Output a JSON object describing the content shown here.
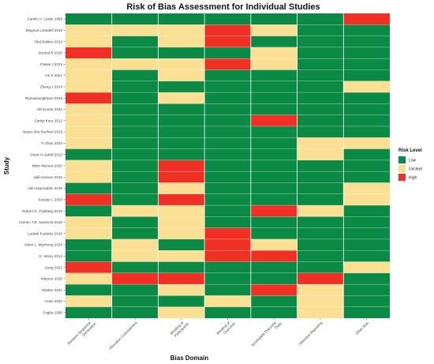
{
  "chart_data": {
    "type": "heatmap",
    "title": "Risk of Bias Assessment for Individual Studies",
    "xlabel": "Bias Domain",
    "ylabel": "Study",
    "x_categories": [
      "Random Sequence Generation",
      "Allocation Concealment",
      "Blinding of Participants",
      "Blinding of Outcome",
      "Incomplete Outcome Data",
      "Selective Reporting",
      "Other Bias"
    ],
    "y_categories": [
      "Camilo A. Leslie 1968",
      "Magnus Lönsdell 2010",
      "Olaf Bakker 2024",
      "Strohal R 2025",
      "Pasek J 2023",
      "He S 2021",
      "Zhang J 2014",
      "Rianantiungkham 2025",
      "Alit Kumar 2020",
      "Sartipi Kaur 2012",
      "Neser Abu Rached 2023",
      "Yi Zhao 2023",
      "Omar Al-Jaloill 2022",
      "Mitre Macura 2020",
      "Jalil Azimian 2015",
      "Nik Hisamuddin 2019",
      "Kessler L 2003",
      "Robert G. Frykberg 2020",
      "Katrien T.B. Santema 2018",
      "Ludwik Fedorko 2016",
      "Aldon L. Mynhong 2024",
      "G. Ielsiry 2012",
      "Song 2021",
      "Mirpour 2020",
      "Wadee 2021",
      "Amini 2020",
      "Fagha 1996"
    ],
    "levels": [
      "Low",
      "Unclear",
      "High"
    ],
    "grid": [
      [
        "Low",
        "Low",
        "Low",
        "Low",
        "Low",
        "Low",
        "High"
      ],
      [
        "Unclear",
        "Unclear",
        "Unclear",
        "High",
        "Unclear",
        "Low",
        "Low"
      ],
      [
        "Unclear",
        "Low",
        "Unclear",
        "High",
        "Low",
        "Low",
        "Low"
      ],
      [
        "High",
        "Low",
        "Low",
        "Low",
        "Unclear",
        "Low",
        "Low"
      ],
      [
        "Unclear",
        "Unclear",
        "Unclear",
        "High",
        "Unclear",
        "Low",
        "Low"
      ],
      [
        "Unclear",
        "Low",
        "Unclear",
        "Low",
        "Low",
        "Low",
        "Low"
      ],
      [
        "Unclear",
        "Low",
        "Low",
        "Low",
        "Low",
        "Low",
        "Unclear"
      ],
      [
        "High",
        "Low",
        "Unclear",
        "Low",
        "Low",
        "Low",
        "Low"
      ],
      [
        "Unclear",
        "Low",
        "Low",
        "Low",
        "Low",
        "Low",
        "Low"
      ],
      [
        "Unclear",
        "Low",
        "Low",
        "Low",
        "High",
        "Low",
        "Low"
      ],
      [
        "Unclear",
        "Low",
        "Low",
        "Low",
        "Low",
        "Low",
        "Low"
      ],
      [
        "Unclear",
        "Low",
        "Low",
        "Low",
        "Low",
        "Unclear",
        "Unclear"
      ],
      [
        "Low",
        "Low",
        "Low",
        "Low",
        "Low",
        "Unclear",
        "Low"
      ],
      [
        "Unclear",
        "Low",
        "High",
        "Low",
        "Low",
        "Low",
        "Low"
      ],
      [
        "Unclear",
        "Low",
        "High",
        "Low",
        "Low",
        "Low",
        "Low"
      ],
      [
        "Low",
        "Low",
        "Unclear",
        "Low",
        "Low",
        "Low",
        "Unclear"
      ],
      [
        "High",
        "Low",
        "High",
        "Low",
        "Low",
        "Low",
        "Unclear"
      ],
      [
        "Low",
        "Unclear",
        "Unclear",
        "Low",
        "High",
        "Unclear",
        "Low"
      ],
      [
        "Unclear",
        "Low",
        "Unclear",
        "Low",
        "Low",
        "Low",
        "Low"
      ],
      [
        "Unclear",
        "Low",
        "Unclear",
        "High",
        "Low",
        "Low",
        "Low"
      ],
      [
        "Low",
        "Unclear",
        "Low",
        "High",
        "Unclear",
        "Low",
        "Low"
      ],
      [
        "Low",
        "Unclear",
        "Unclear",
        "High",
        "High",
        "Low",
        "Low"
      ],
      [
        "High",
        "Low",
        "Low",
        "Low",
        "Low",
        "Low",
        "Unclear"
      ],
      [
        "Unclear",
        "High",
        "High",
        "Low",
        "Low",
        "High",
        "Low"
      ],
      [
        "Low",
        "Low",
        "Unclear",
        "Low",
        "High",
        "Unclear",
        "Low"
      ],
      [
        "Unclear",
        "Low",
        "Low",
        "Unclear",
        "Low",
        "Unclear",
        "Low"
      ],
      [
        "Low",
        "Low",
        "Unclear",
        "Low",
        "Low",
        "Unclear",
        "Low"
      ]
    ],
    "legend": {
      "title": "Risk Level",
      "position": "right"
    },
    "colors": {
      "Low": "#0a8a45",
      "Unclear": "#fbe093",
      "High": "#f03024"
    }
  }
}
